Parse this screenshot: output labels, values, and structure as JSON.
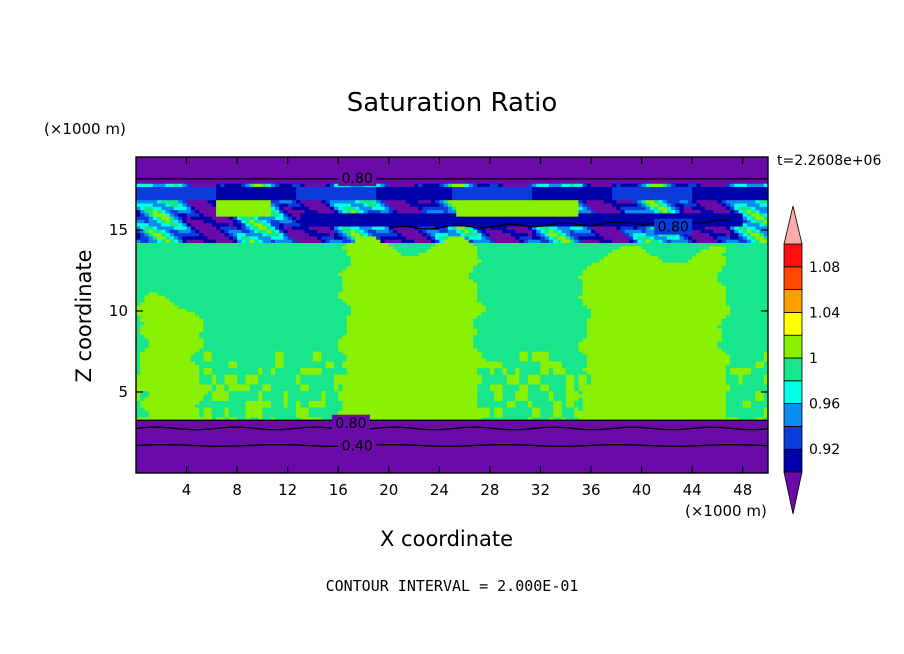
{
  "figure": {
    "title": "Saturation Ratio",
    "time_label": "t=2.2608e+06",
    "x_unit_top": "(×1000 m)",
    "x_unit_bottom": "(×1000 m)",
    "contour_interval_text": "CONTOUR INTERVAL = 2.000E-01"
  },
  "chart_data": {
    "type": "heatmap",
    "title": "Saturation Ratio",
    "xlabel": "X coordinate",
    "ylabel": "Z coordinate",
    "x_unit": "×1000 m",
    "z_unit": "×1000 m",
    "xlim": [
      0,
      50
    ],
    "ylim": [
      0,
      19.5
    ],
    "xticks": [
      4,
      8,
      12,
      16,
      20,
      24,
      28,
      32,
      36,
      40,
      44,
      48
    ],
    "yticks": [
      5,
      10,
      15
    ],
    "time": "t=2.2608e+06",
    "colorbar": {
      "labels": [
        "1.08",
        "1.04",
        "1",
        "0.96",
        "0.92"
      ],
      "label_values": [
        1.08,
        1.04,
        1.0,
        0.96,
        0.92
      ],
      "levels": [
        0.9,
        0.92,
        0.94,
        0.96,
        0.98,
        1.0,
        1.02,
        1.04,
        1.06,
        1.08,
        1.1
      ],
      "colors": [
        "#6a0aa8",
        "#0000a8",
        "#0a3cdc",
        "#0a8cf0",
        "#00ffe6",
        "#18e68c",
        "#88f000",
        "#ffff00",
        "#ffa000",
        "#ff4800",
        "#ff0f0f",
        "#ffaaaa"
      ],
      "extend": "both"
    },
    "contour_labels": [
      {
        "text": "0.80",
        "x": 17.5,
        "z": 18.2
      },
      {
        "text": "0.80",
        "x": 42.5,
        "z": 15.2
      },
      {
        "text": "0.80",
        "x": 17.0,
        "z": 3.1
      },
      {
        "text": "0.40",
        "x": 17.5,
        "z": 1.7
      }
    ],
    "contour_interval": 0.2,
    "regions": {
      "background_level": 0.99,
      "upper_dry_layer": {
        "z_range": [
          17.8,
          19.5
        ],
        "value": 0.8
      },
      "lower_dry_layer": {
        "z_range": [
          0,
          3.3
        ],
        "value": 0.4
      },
      "supersaturated_columns": [
        {
          "x_range": [
            0.5,
            5.0
          ],
          "z_range": [
            3.3,
            10.5
          ]
        },
        {
          "x_range": [
            16.5,
            27.0
          ],
          "z_range": [
            3.3,
            14.0
          ]
        },
        {
          "x_range": [
            35.5,
            46.5
          ],
          "z_range": [
            3.3,
            13.5
          ]
        }
      ],
      "upper_moist_patches": [
        {
          "x_range": [
            6.5,
            10.5
          ],
          "z_range": [
            15.8,
            16.9
          ]
        },
        {
          "x_range": [
            25.5,
            35.0
          ],
          "z_range": [
            15.9,
            16.8
          ]
        }
      ]
    }
  }
}
